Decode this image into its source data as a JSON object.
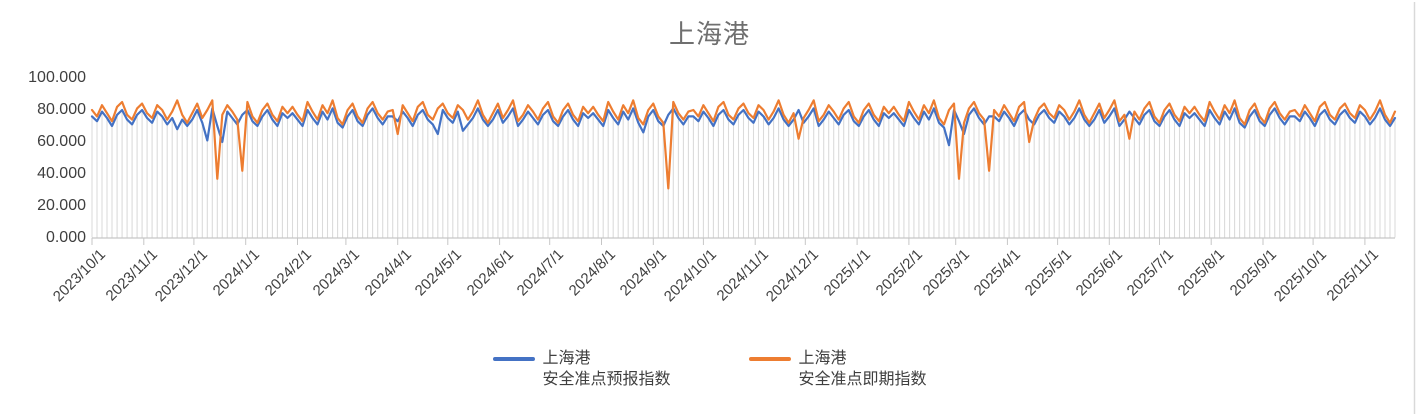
{
  "title": "上海港",
  "colors": {
    "series_forecast": "#4472C4",
    "series_spot": "#ED7D31",
    "dropline": "#DBDBDB",
    "axis_line": "#C6C6C6",
    "title_text": "#6f6f6f",
    "label_text": "#3f3f3f",
    "chart_border": "#D9D9D9"
  },
  "legend": {
    "items": [
      {
        "line1": "上海港",
        "line2": "安全准点预报指数",
        "color": "#4472C4"
      },
      {
        "line1": "上海港",
        "line2": "安全准点即期指数",
        "color": "#ED7D31"
      }
    ]
  },
  "chart_data": {
    "type": "line",
    "title": "上海港",
    "xlabel": "",
    "ylabel": "",
    "ylim": [
      0,
      100
    ],
    "grid": "vertical droplines at each data point, no horizontal gridlines",
    "legend_position": "bottom",
    "start_date": "2023/10/1",
    "interval_days": 3,
    "x_tick_labels": [
      "2023/10/1",
      "2023/11/1",
      "2023/12/1",
      "2024/1/1",
      "2024/2/1",
      "2024/3/1",
      "2024/4/1",
      "2024/5/1",
      "2024/6/1",
      "2024/7/1",
      "2024/8/1",
      "2024/9/1",
      "2024/10/1",
      "2024/11/1",
      "2024/12/1",
      "2025/1/1",
      "2025/2/1",
      "2025/3/1",
      "2025/4/1",
      "2025/5/1",
      "2025/6/1",
      "2025/7/1",
      "2025/8/1",
      "2025/9/1",
      "2025/10/1",
      "2025/11/1"
    ],
    "y_ticks": [
      {
        "label": "100.000",
        "value": 100
      },
      {
        "label": "80.000",
        "value": 80
      },
      {
        "label": "60.000",
        "value": 60
      },
      {
        "label": "40.000",
        "value": 40
      },
      {
        "label": "20.000",
        "value": 20
      },
      {
        "label": "0.000",
        "value": 0
      }
    ],
    "series": [
      {
        "name": "上海港 安全准点预报指数",
        "color": "#4472C4",
        "values": [
          76,
          73,
          79,
          75,
          70,
          77,
          80,
          74,
          71,
          77,
          80,
          75,
          72,
          79,
          76,
          71,
          75,
          68,
          74,
          70,
          74,
          80,
          72,
          61,
          81,
          70,
          60,
          79,
          75,
          71,
          77,
          80,
          73,
          70,
          76,
          80,
          74,
          70,
          78,
          75,
          78,
          74,
          70,
          80,
          75,
          71,
          79,
          74,
          81,
          72,
          69,
          76,
          80,
          73,
          70,
          77,
          81,
          75,
          71,
          76,
          76,
          73,
          79,
          75,
          70,
          77,
          80,
          74,
          71,
          65,
          80,
          75,
          72,
          79,
          67,
          71,
          75,
          81,
          74,
          70,
          74,
          80,
          72,
          76,
          81,
          70,
          74,
          79,
          75,
          71,
          77,
          80,
          73,
          70,
          76,
          80,
          74,
          70,
          78,
          75,
          78,
          74,
          70,
          80,
          75,
          71,
          79,
          74,
          81,
          72,
          66,
          76,
          80,
          73,
          70,
          77,
          81,
          75,
          71,
          76,
          76,
          73,
          79,
          75,
          70,
          77,
          80,
          74,
          71,
          77,
          80,
          75,
          72,
          79,
          76,
          71,
          75,
          81,
          74,
          70,
          74,
          80,
          72,
          76,
          81,
          70,
          74,
          79,
          75,
          71,
          77,
          80,
          73,
          70,
          76,
          80,
          74,
          70,
          78,
          75,
          78,
          74,
          70,
          80,
          75,
          71,
          79,
          74,
          81,
          72,
          69,
          58,
          80,
          73,
          65,
          77,
          81,
          75,
          71,
          76,
          76,
          73,
          79,
          75,
          70,
          77,
          80,
          74,
          71,
          77,
          80,
          75,
          72,
          79,
          76,
          71,
          75,
          81,
          74,
          70,
          74,
          80,
          72,
          76,
          81,
          70,
          74,
          79,
          75,
          71,
          77,
          80,
          73,
          70,
          76,
          80,
          74,
          70,
          78,
          75,
          78,
          74,
          70,
          80,
          75,
          71,
          79,
          74,
          81,
          72,
          69,
          76,
          80,
          73,
          70,
          77,
          81,
          75,
          71,
          76,
          76,
          73,
          79,
          75,
          70,
          77,
          80,
          74,
          71,
          77,
          80,
          75,
          72,
          79,
          76,
          71,
          75,
          81,
          74,
          70,
          75
        ]
      },
      {
        "name": "上海港 安全准点即期指数",
        "color": "#ED7D31",
        "values": [
          80,
          76,
          83,
          78,
          73,
          82,
          85,
          77,
          74,
          81,
          84,
          78,
          75,
          83,
          80,
          74,
          79,
          86,
          77,
          72,
          78,
          84,
          75,
          80,
          86,
          37,
          77,
          83,
          79,
          74,
          42,
          85,
          76,
          72,
          80,
          84,
          77,
          73,
          82,
          78,
          82,
          77,
          73,
          85,
          79,
          74,
          83,
          78,
          86,
          75,
          71,
          80,
          84,
          76,
          72,
          81,
          85,
          78,
          74,
          79,
          80,
          65,
          83,
          78,
          73,
          82,
          85,
          77,
          74,
          81,
          84,
          78,
          75,
          83,
          80,
          74,
          79,
          86,
          77,
          72,
          78,
          84,
          75,
          80,
          86,
          73,
          77,
          83,
          79,
          74,
          81,
          85,
          76,
          72,
          80,
          84,
          77,
          73,
          82,
          78,
          82,
          77,
          73,
          85,
          79,
          74,
          83,
          78,
          86,
          75,
          71,
          80,
          84,
          76,
          72,
          31,
          85,
          78,
          74,
          79,
          80,
          76,
          83,
          78,
          73,
          82,
          85,
          77,
          74,
          81,
          84,
          78,
          75,
          83,
          80,
          74,
          79,
          86,
          77,
          72,
          78,
          62,
          75,
          80,
          86,
          73,
          77,
          83,
          79,
          74,
          81,
          85,
          76,
          72,
          80,
          84,
          77,
          73,
          82,
          78,
          82,
          77,
          73,
          85,
          79,
          74,
          83,
          78,
          86,
          75,
          71,
          80,
          84,
          37,
          72,
          81,
          85,
          78,
          74,
          42,
          80,
          76,
          83,
          78,
          73,
          82,
          85,
          60,
          74,
          81,
          84,
          78,
          75,
          83,
          80,
          74,
          79,
          86,
          77,
          72,
          78,
          84,
          75,
          80,
          86,
          73,
          77,
          62,
          79,
          74,
          81,
          85,
          76,
          72,
          80,
          84,
          77,
          73,
          82,
          78,
          82,
          77,
          73,
          85,
          79,
          74,
          83,
          78,
          86,
          75,
          71,
          80,
          84,
          76,
          72,
          81,
          85,
          78,
          74,
          79,
          80,
          76,
          83,
          78,
          73,
          82,
          85,
          77,
          74,
          81,
          84,
          78,
          75,
          83,
          80,
          74,
          79,
          86,
          77,
          72,
          79
        ]
      }
    ]
  }
}
